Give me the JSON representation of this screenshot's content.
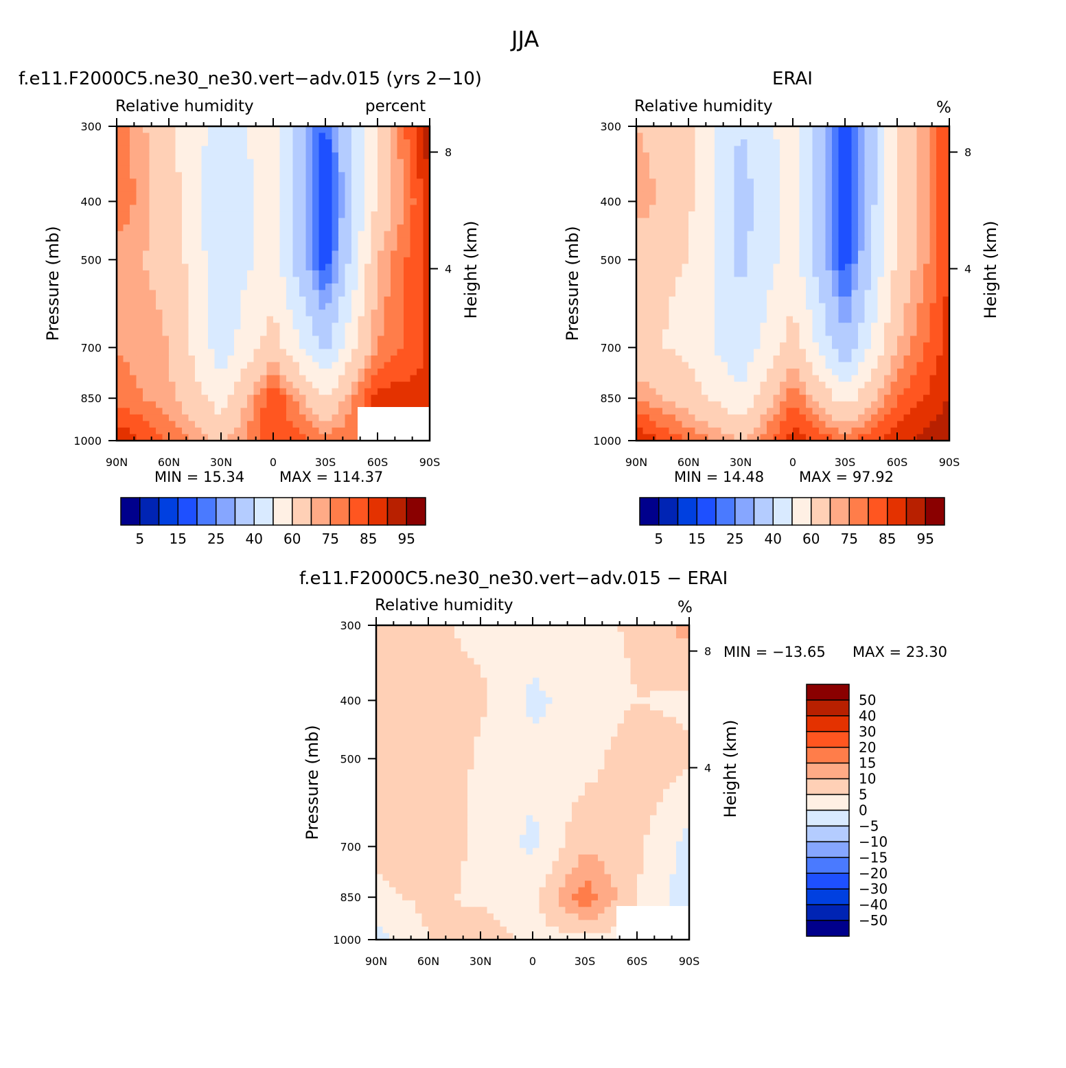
{
  "suptitle": "JJA",
  "colors": {
    "rh_palette": [
      "#00008c",
      "#0024b4",
      "#0040e0",
      "#1e50ff",
      "#4a7aff",
      "#86a6ff",
      "#b4ccff",
      "#d9eaff",
      "#fff0e4",
      "#ffd0b6",
      "#ffaa86",
      "#ff7d4a",
      "#ff5620",
      "#e43200",
      "#b82000",
      "#8a0000"
    ],
    "missing": "#ffffff"
  },
  "panels": [
    {
      "id": "model",
      "title": "f.e11.F2000C5.ne30_ne30.vert−adv.015 (yrs 2−10)",
      "variable": "Relative humidity",
      "units": "percent",
      "ylabel": "Pressure (mb)",
      "y2label": "Height (km)",
      "min_text": "MIN =   15.34",
      "max_text": "MAX = 114.37"
    },
    {
      "id": "obs",
      "title": "ERAI",
      "variable": "Relative humidity",
      "units": "%",
      "ylabel": "Pressure (mb)",
      "y2label": "Height (km)",
      "min_text": "MIN =   14.48",
      "max_text": "MAX =   97.92"
    },
    {
      "id": "diff",
      "title": "f.e11.F2000C5.ne30_ne30.vert−adv.015 − ERAI",
      "variable": "Relative humidity",
      "units": "%",
      "ylabel": "Pressure (mb)",
      "y2label": "Height (km)",
      "min_text": "MIN = −13.65",
      "max_text": "MAX =   23.30"
    }
  ],
  "chart_data": [
    {
      "type": "heatmap",
      "panel": "model",
      "xlabel": "",
      "ylabel": "Pressure (mb)",
      "y2label": "Height (km)",
      "x_ticks": [
        "90N",
        "60N",
        "30N",
        "0",
        "30S",
        "60S",
        "90S"
      ],
      "y_ticks": [
        "300",
        "400",
        "500",
        "700",
        "850",
        "1000"
      ],
      "y2_ticks": [
        "8",
        "4"
      ],
      "levels": [
        5,
        10,
        15,
        20,
        25,
        30,
        40,
        50,
        60,
        70,
        75,
        80,
        85,
        90,
        95
      ],
      "level_labels": [
        "5",
        "15",
        "25",
        "40",
        "60",
        "75",
        "85",
        "95"
      ],
      "min": 15.34,
      "max": 114.37,
      "x": [
        -90,
        -60,
        -30,
        0,
        30,
        60,
        90
      ],
      "p": [
        300,
        400,
        500,
        700,
        850,
        1000
      ],
      "z": [
        [
          80,
          62,
          45,
          55,
          18,
          62,
          95
        ],
        [
          80,
          65,
          42,
          55,
          14,
          62,
          88
        ],
        [
          72,
          68,
          42,
          55,
          15,
          70,
          88
        ],
        [
          75,
          70,
          45,
          65,
          38,
          75,
          86
        ],
        [
          78,
          72,
          55,
          85,
          60,
          88,
          86
        ],
        [
          90,
          80,
          68,
          85,
          78,
          80,
          86
        ]
      ]
    },
    {
      "type": "heatmap",
      "panel": "obs",
      "xlabel": "",
      "ylabel": "Pressure (mb)",
      "y2label": "Height (km)",
      "x_ticks": [
        "90N",
        "60N",
        "30N",
        "0",
        "30S",
        "60S",
        "90S"
      ],
      "y_ticks": [
        "300",
        "400",
        "500",
        "700",
        "850",
        "1000"
      ],
      "y2_ticks": [
        "8",
        "4"
      ],
      "levels": [
        5,
        10,
        15,
        20,
        25,
        30,
        40,
        50,
        60,
        70,
        75,
        80,
        85,
        90,
        95
      ],
      "level_labels": [
        "5",
        "15",
        "25",
        "40",
        "60",
        "75",
        "85",
        "95"
      ],
      "min": 14.48,
      "max": 97.92,
      "x": [
        -90,
        -60,
        -30,
        0,
        30,
        60,
        90
      ],
      "p": [
        300,
        400,
        500,
        700,
        850,
        1000
      ],
      "z": [
        [
          70,
          62,
          40,
          55,
          14,
          60,
          85
        ],
        [
          75,
          62,
          35,
          55,
          14,
          60,
          85
        ],
        [
          62,
          60,
          38,
          55,
          16,
          62,
          85
        ],
        [
          62,
          58,
          42,
          65,
          32,
          70,
          88
        ],
        [
          75,
          65,
          52,
          80,
          55,
          80,
          90
        ],
        [
          90,
          80,
          70,
          88,
          80,
          88,
          95
        ]
      ]
    },
    {
      "type": "heatmap",
      "panel": "diff",
      "xlabel": "",
      "ylabel": "Pressure (mb)",
      "y2label": "Height (km)",
      "x_ticks": [
        "90N",
        "60N",
        "30N",
        "0",
        "30S",
        "60S",
        "90S"
      ],
      "y_ticks": [
        "300",
        "400",
        "500",
        "700",
        "850",
        "1000"
      ],
      "y2_ticks": [
        "8",
        "4"
      ],
      "levels": [
        -50,
        -40,
        -30,
        -20,
        -15,
        -10,
        -5,
        0,
        5,
        10,
        15,
        20,
        30,
        40,
        50
      ],
      "level_labels": [
        "50",
        "40",
        "30",
        "20",
        "15",
        "10",
        "5",
        "0",
        "−5",
        "−10",
        "−15",
        "−20",
        "−30",
        "−40",
        "−50"
      ],
      "min": -13.65,
      "max": 23.3,
      "x": [
        -90,
        -60,
        -30,
        0,
        30,
        60,
        90
      ],
      "p": [
        300,
        400,
        500,
        700,
        850,
        1000
      ],
      "z": [
        [
          8,
          6,
          4,
          2,
          3,
          6,
          12
        ],
        [
          6,
          5,
          6,
          -1,
          2,
          5,
          4
        ],
        [
          9,
          10,
          4,
          1,
          3,
          8,
          6
        ],
        [
          6,
          10,
          3,
          -1,
          9,
          6,
          -2
        ],
        [
          4,
          6,
          4,
          3,
          18,
          5,
          -3
        ],
        [
          -2,
          5,
          8,
          3,
          4,
          2,
          2
        ]
      ]
    }
  ]
}
